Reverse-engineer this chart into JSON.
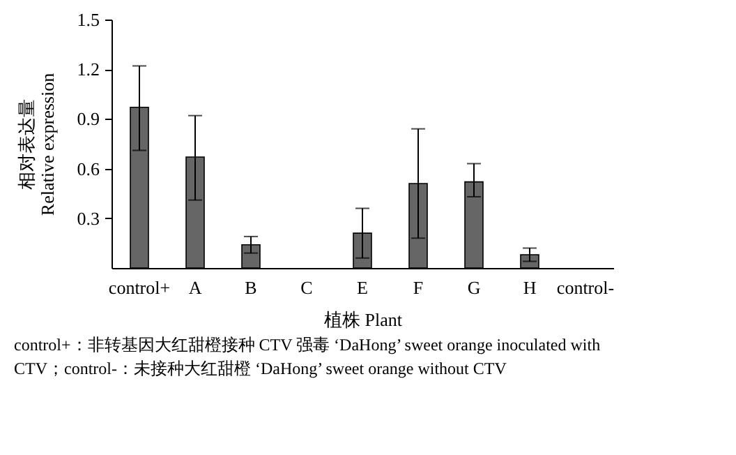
{
  "chart_data": {
    "type": "bar",
    "categories": [
      "control+",
      "A",
      "B",
      "C",
      "E",
      "F",
      "G",
      "H",
      "control-"
    ],
    "values": [
      0.97,
      0.67,
      0.14,
      null,
      0.21,
      0.51,
      0.52,
      0.08,
      null
    ],
    "errors": [
      [
        0.71,
        1.22
      ],
      [
        0.41,
        0.92
      ],
      [
        0.09,
        0.19
      ],
      null,
      [
        0.06,
        0.36
      ],
      [
        0.18,
        0.84
      ],
      [
        0.43,
        0.63
      ],
      [
        0.04,
        0.12
      ],
      null
    ],
    "color": "#666666",
    "ylim": [
      0,
      1.5
    ],
    "yticks": [
      0.3,
      0.6,
      0.9,
      1.2,
      1.5
    ],
    "xlabel": "植株 Plant",
    "ylabel": "相对表达量\nRelative expression",
    "grid": false,
    "annotations": [
      "control+：非转基因大红甜橙接种 CTV 强毒 ‘DaHong’ sweet orange inoculated with CTV；control-：未接种大红甜橙 ‘DaHong’ sweet orange without CTV"
    ]
  }
}
